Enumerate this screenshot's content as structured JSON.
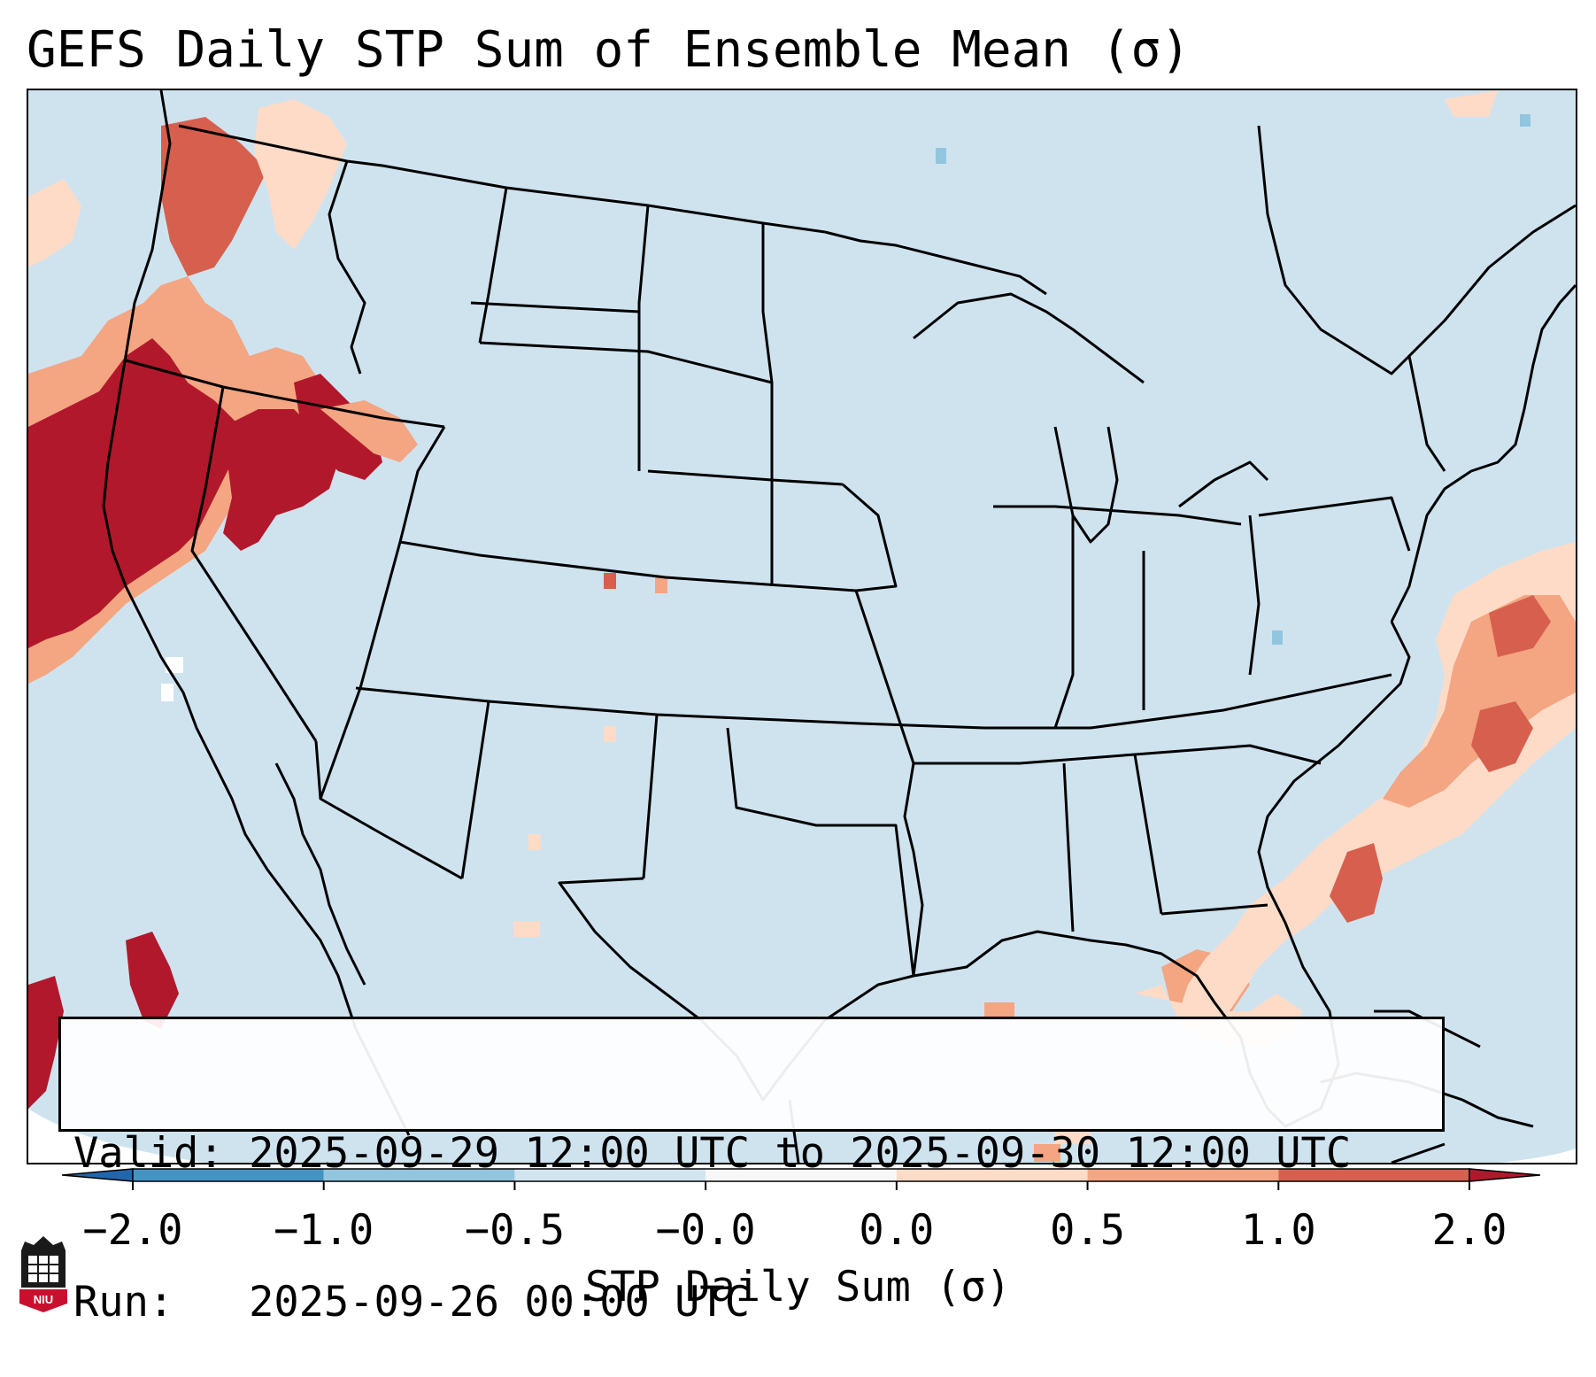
{
  "title": "GEFS Daily STP Sum of Ensemble Mean (σ)",
  "info": {
    "valid_line": "Valid: 2025-09-29 12:00 UTC to 2025-09-30 12:00 UTC",
    "run_line": "Run:   2025-09-26 00:00 UTC"
  },
  "colorbar": {
    "label": "STP Daily Sum (σ)",
    "ticks": [
      "−2.0",
      "−1.0",
      "−0.5",
      "−0.0",
      "0.0",
      "0.5",
      "1.0",
      "2.0"
    ],
    "segments": [
      {
        "from": "−2.0",
        "to": "−1.0",
        "color": "#4393c3"
      },
      {
        "from": "−1.0",
        "to": "−0.5",
        "color": "#92c5de"
      },
      {
        "from": "−0.5",
        "to": "−0.0",
        "color": "#d1e5f0"
      },
      {
        "from": "−0.0",
        "to": "0.0",
        "color": "#f7f7f7"
      },
      {
        "from": "0.0",
        "to": "0.5",
        "color": "#fddbc7"
      },
      {
        "from": "0.5",
        "to": "1.0",
        "color": "#f4a582"
      },
      {
        "from": "1.0",
        "to": "2.0",
        "color": "#d6604d"
      }
    ],
    "under_color": "#2166ac",
    "over_color": "#b2182b"
  },
  "logo": {
    "text": "NIU",
    "icon": "niu-logo-icon"
  },
  "colors": {
    "ocean_land_background": "#cfe3ef",
    "very_high": "#b2182b",
    "high": "#d6604d",
    "moderate": "#f4a582",
    "low": "#fddbc7",
    "near_zero": "#f7f7f7",
    "negative_low": "#92c5de"
  }
}
